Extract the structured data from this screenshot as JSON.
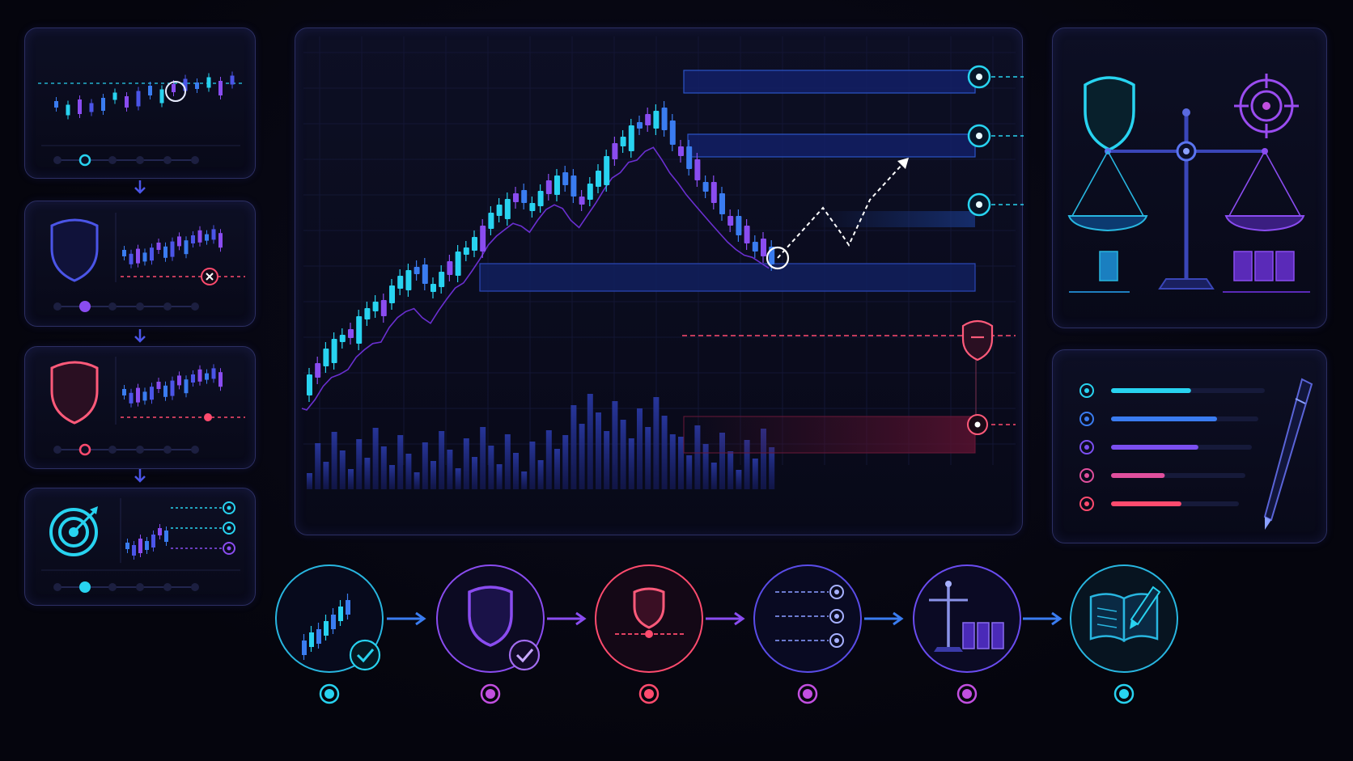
{
  "colors": {
    "background": "#05050d",
    "panel_border": "#2c2f63",
    "cyan": "#28d3f0",
    "blue": "#3a7cf0",
    "indigo": "#4b55e8",
    "violet": "#8a4cf0",
    "magenta": "#c24fe0",
    "red": "#ff4b6e",
    "green_neutral": "#2fd9c9"
  },
  "icons": {
    "left_steps": [
      "candlestick-chart-icon",
      "shield-icon",
      "shield-icon",
      "target-icon"
    ],
    "right_top": [
      "shield-icon",
      "balance-scale-icon",
      "crosshair-target-icon"
    ],
    "right_bottom": [
      "checklist-icon",
      "pen-icon"
    ],
    "workflow": [
      "candlestick-chart-icon",
      "shield-check-icon",
      "shield-stop-icon",
      "price-levels-icon",
      "balance-bar-icon",
      "journal-pen-icon"
    ]
  },
  "workflow": {
    "step_count": 6,
    "completed_steps": 2,
    "dot_colors": [
      "#28d3f0",
      "#c24fe0",
      "#ff4b6e",
      "#c24fe0",
      "#c24fe0",
      "#28d3f0"
    ]
  },
  "checklist": {
    "progress": [
      0.52,
      0.72,
      0.62,
      0.4,
      0.55
    ],
    "colors": [
      "#28d3f0",
      "#3a7cf0",
      "#7b4ff0",
      "#e04f9d",
      "#ff4b6e"
    ]
  },
  "main_chart": {
    "type": "candlestick",
    "price_levels": [
      "target-3",
      "target-2",
      "target-1",
      "entry-zone",
      "stop-loss",
      "risk-zone"
    ]
  }
}
